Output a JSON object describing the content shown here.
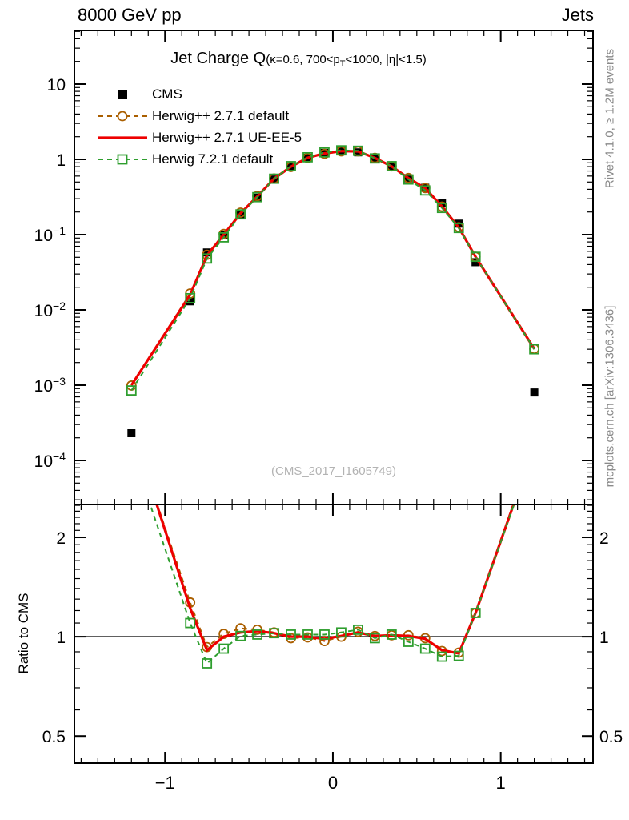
{
  "header": {
    "beam": "8000 GeV pp",
    "group": "Jets"
  },
  "title": {
    "main": "Jet Charge Q",
    "params_prefix": "(κ=0.6, 700<p",
    "params_sub": "T",
    "params_suffix": "<1000, |η|<1.5)"
  },
  "side_labels": {
    "rivet": "Rivet 4.1.0, ≥ 1.2M events",
    "mcplots": "mcplots.cern.ch [arXiv:1306.3436]"
  },
  "watermark": "(CMS_2017_I1605749)",
  "ratio_axis_label": "Ratio to CMS",
  "colors": {
    "frame": "#000000",
    "muted_text": "#8a8a8a",
    "watermark": "#b3b3b3"
  },
  "chart_data": {
    "type": "line",
    "title": "Jet Charge Q (kappa=0.6, 700<pT<1000, |eta|<1.5)",
    "x": [
      -1.2,
      -0.85,
      -0.75,
      -0.65,
      -0.55,
      -0.45,
      -0.35,
      -0.25,
      -0.15,
      -0.05,
      0.05,
      0.15,
      0.25,
      0.35,
      0.45,
      0.55,
      0.65,
      0.75,
      0.85,
      1.2
    ],
    "cms": {
      "label": "CMS",
      "color": "#000000",
      "marker": "filled-square",
      "values": [
        0.00023,
        0.013,
        0.058,
        0.1,
        0.185,
        0.31,
        0.54,
        0.8,
        1.05,
        1.22,
        1.28,
        1.24,
        1.04,
        0.8,
        0.56,
        0.42,
        0.26,
        0.14,
        0.043,
        0.0008
      ]
    },
    "series": [
      {
        "name": "Herwig++ 2.7.1 default",
        "color": "#aa5f00",
        "marker": "open-circle",
        "line": "dashed",
        "ratio_to_cms": [
          4.3,
          1.27,
          0.93,
          1.02,
          1.06,
          1.05,
          1.03,
          0.99,
          0.995,
          0.97,
          1.0,
          1.035,
          1.005,
          1.01,
          1.01,
          0.99,
          0.905,
          0.895,
          1.18,
          3.8
        ]
      },
      {
        "name": "Herwig++ 2.7.1 UE-EE-5",
        "color": "#ee0000",
        "marker": "none",
        "line": "solid",
        "ratio_to_cms": [
          4.35,
          1.22,
          0.91,
          1.0,
          1.03,
          1.04,
          1.025,
          1.0,
          1.0,
          0.985,
          1.005,
          1.03,
          1.005,
          1.01,
          1.005,
          0.985,
          0.91,
          0.89,
          1.18,
          3.8
        ]
      },
      {
        "name": "Herwig 7.2.1 default",
        "color": "#2e9e2e",
        "marker": "open-square",
        "line": "dashed",
        "ratio_to_cms": [
          3.7,
          1.1,
          0.83,
          0.92,
          1.005,
          1.015,
          1.025,
          1.015,
          1.015,
          1.015,
          1.03,
          1.05,
          0.99,
          1.015,
          0.965,
          0.92,
          0.87,
          0.875,
          1.18,
          3.75
        ]
      }
    ],
    "axes": {
      "x": {
        "range": [
          -1.54,
          1.55
        ],
        "major_ticks": [
          -1,
          0,
          1
        ],
        "tick_labels": [
          "−1",
          "0",
          "1"
        ],
        "minor_step": 0.1
      },
      "y_main": {
        "scale": "log",
        "range": [
          2.6e-05,
          51.6
        ],
        "ticks": [
          {
            "value": 10,
            "base": "10",
            "exp": ""
          },
          {
            "value": 1,
            "base": "1",
            "exp": ""
          },
          {
            "value": 0.1,
            "base": "10",
            "exp": "−1"
          },
          {
            "value": 0.01,
            "base": "10",
            "exp": "−2"
          },
          {
            "value": 0.001,
            "base": "10",
            "exp": "−3"
          },
          {
            "value": 0.0001,
            "base": "10",
            "exp": "−4"
          }
        ]
      },
      "y_ratio": {
        "scale": "log",
        "range": [
          0.414,
          2.515
        ],
        "ticks": [
          {
            "value": 2,
            "label": "2"
          },
          {
            "value": 1,
            "label": "1"
          },
          {
            "value": 0.5,
            "label": "0.5"
          }
        ],
        "reference_line": 1
      },
      "legend_position": "top-left",
      "grid": false
    }
  }
}
